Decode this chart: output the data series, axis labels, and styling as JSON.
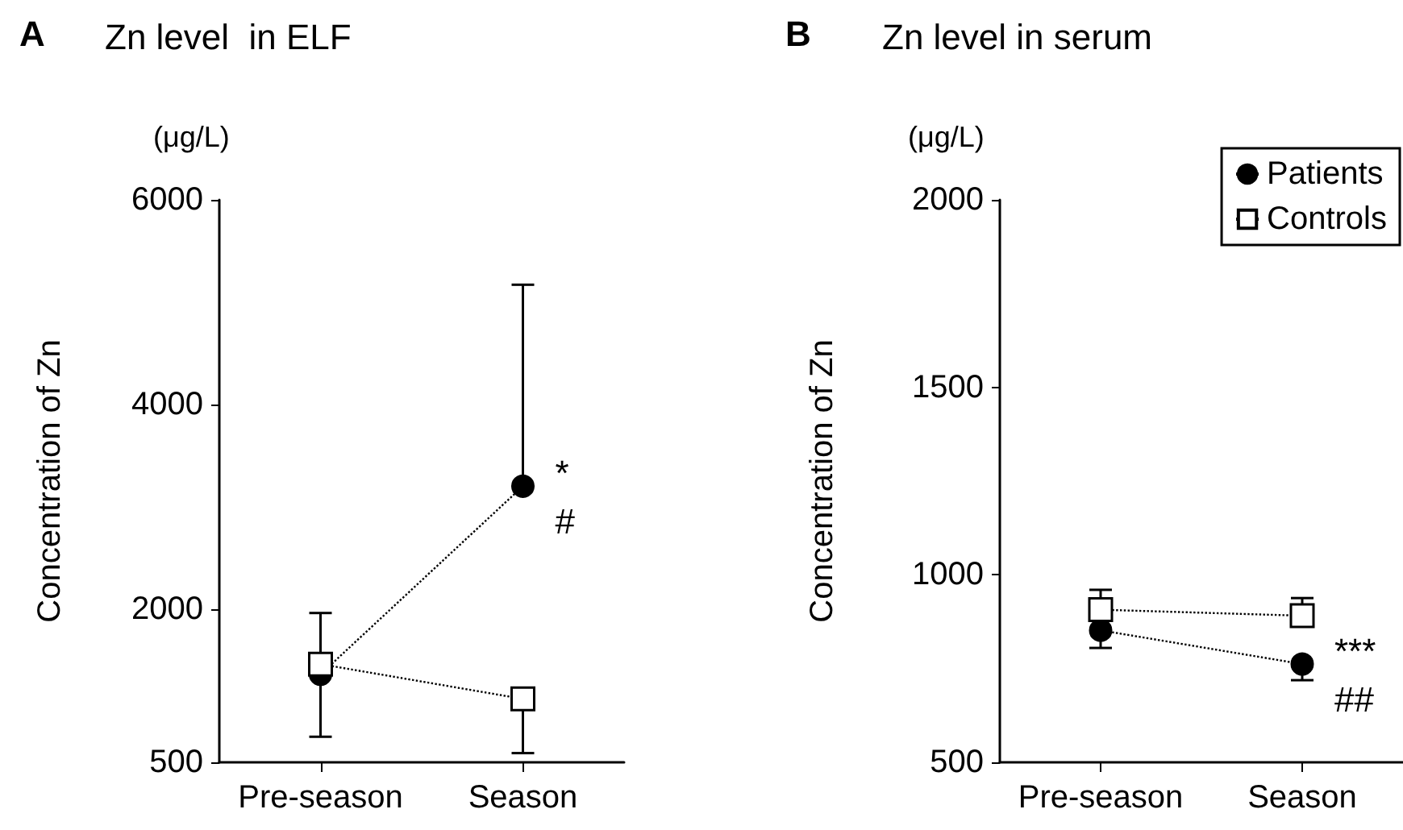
{
  "chart_data": [
    {
      "type": "line",
      "title": "Zn level  in ELF",
      "ylabel": "Concentration of Zn",
      "categories": [
        "Pre-season",
        "Season"
      ],
      "series": [
        {
          "color": "#000000",
          "marker": "circle",
          "values": [
            1360,
            3200
          ],
          "errors": [
            [
              750,
              1960
            ],
            [
              3200,
              5170
            ]
          ]
        },
        {
          "color": "#000000",
          "marker": "square",
          "values": [
            1460,
            1120
          ],
          "errors": [
            null,
            [
              590,
              1120
            ]
          ]
        }
      ],
      "ylim": [
        500,
        6000
      ],
      "yticks": [
        500,
        2000,
        4000,
        6000
      ],
      "line_style": "dotted",
      "legend": false,
      "grid": false,
      "annotations": [
        "A",
        "(μg/L)",
        {
          "text": "*",
          "x": "Season",
          "y": 3200
        },
        {
          "text": "#",
          "x": "Season",
          "y": 3200
        }
      ]
    },
    {
      "type": "line",
      "title": "Zn level in serum",
      "ylabel": "Concentration of Zn",
      "categories": [
        "Pre-season",
        "Season"
      ],
      "series": [
        {
          "name": "Patients",
          "color": "#000000",
          "marker": "circle",
          "values": [
            852,
            762
          ],
          "errors": [
            [
              805,
              852
            ],
            [
              719,
              762
            ]
          ]
        },
        {
          "name": "Controls",
          "color": "#000000",
          "marker": "square",
          "values": [
            907,
            891
          ],
          "errors": [
            [
              907,
              960
            ],
            [
              891,
              938
            ]
          ]
        }
      ],
      "ylim": [
        500,
        2000
      ],
      "yticks": [
        500,
        1000,
        1500,
        2000
      ],
      "line_style": "dotted",
      "legend": "top right",
      "grid": false,
      "annotations": [
        "B",
        "(μg/L)",
        {
          "text": "***",
          "x": "Season",
          "y": 762
        },
        {
          "text": "##",
          "x": "Season",
          "y": 762
        }
      ]
    }
  ]
}
